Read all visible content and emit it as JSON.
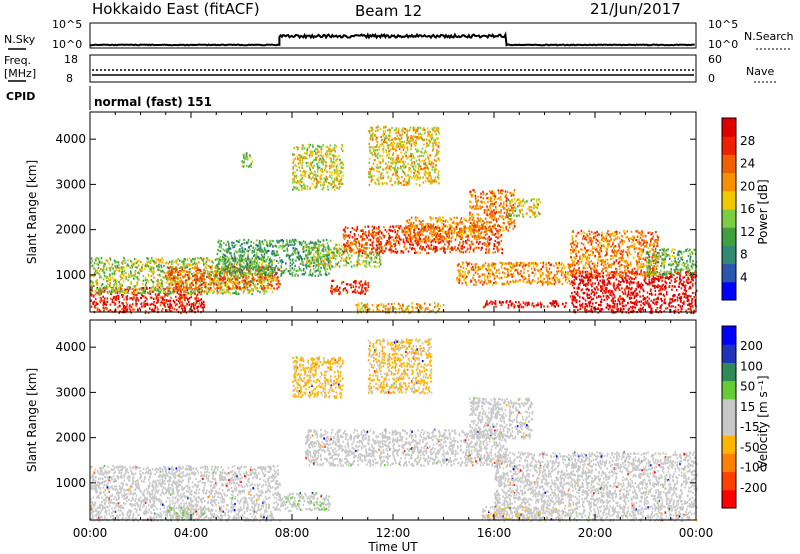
{
  "header": {
    "title": "Hokkaido East (fitACF)",
    "beam": "Beam 12",
    "date": "21/Jun/2017"
  },
  "strip": {
    "nsky_label": "N.Sky",
    "nsky_ticks": [
      "10^5",
      "10^0"
    ],
    "nsearch_label": "N.Search",
    "nsearch_ticks": [
      "10^5",
      "10^0"
    ],
    "freq_label_1": "Freq.",
    "freq_label_2": "[MHz]",
    "freq_ticks": [
      "18",
      "8"
    ],
    "nave_ticks": [
      "60",
      "0"
    ],
    "nave_label": "Nave",
    "cpid_label": "CPID",
    "cpid_value": "normal (fast) 151"
  },
  "chart_data": [
    {
      "type": "heatmap",
      "name": "power",
      "ylabel": "Slant Range [km]",
      "ylim": [
        180,
        4600
      ],
      "yticks": [
        1000,
        2000,
        3000,
        4000
      ],
      "xlabel": "Time UT",
      "xlim_hours": [
        0,
        24
      ],
      "xtick_labels": [
        "00:00",
        "04:00",
        "08:00",
        "12:00",
        "16:00",
        "20:00",
        "00:00"
      ],
      "colorbar": {
        "label": "Power [dB]",
        "ticks": [
          "28",
          "24",
          "20",
          "16",
          "12",
          "8",
          "4"
        ],
        "range": [
          0,
          30
        ],
        "colors": [
          "#0000ff",
          "#2a55b0",
          "#2f8a70",
          "#40a040",
          "#7ccd40",
          "#f2c800",
          "#f59000",
          "#f06000",
          "#ee2000",
          "#e00000"
        ]
      },
      "regions": [
        {
          "t0": 0.0,
          "t1": 4.5,
          "r0": 180,
          "r1": 750,
          "v": 27
        },
        {
          "t0": 0.0,
          "t1": 7.2,
          "r0": 600,
          "r1": 1400,
          "v": 14
        },
        {
          "t0": 3.0,
          "t1": 7.5,
          "r0": 700,
          "r1": 1200,
          "v": 22
        },
        {
          "t0": 5.0,
          "t1": 9.5,
          "r0": 1000,
          "r1": 1800,
          "v": 10
        },
        {
          "t0": 8.5,
          "t1": 11.5,
          "r0": 1200,
          "r1": 1700,
          "v": 14
        },
        {
          "t0": 10.0,
          "t1": 16.3,
          "r0": 1500,
          "r1": 2100,
          "v": 24
        },
        {
          "t0": 12.5,
          "t1": 15.5,
          "r0": 1800,
          "r1": 2300,
          "v": 20
        },
        {
          "t0": 15.0,
          "t1": 16.8,
          "r0": 2000,
          "r1": 2900,
          "v": 21
        },
        {
          "t0": 16.5,
          "t1": 17.8,
          "r0": 2300,
          "r1": 2700,
          "v": 15
        },
        {
          "t0": 14.5,
          "t1": 19.0,
          "r0": 800,
          "r1": 1300,
          "v": 20
        },
        {
          "t0": 15.5,
          "t1": 19.0,
          "r0": 300,
          "r1": 450,
          "v": 28
        },
        {
          "t0": 19.0,
          "t1": 24.0,
          "r0": 180,
          "r1": 1100,
          "v": 29
        },
        {
          "t0": 19.0,
          "t1": 22.5,
          "r0": 1000,
          "r1": 2000,
          "v": 21
        },
        {
          "t0": 22.0,
          "t1": 24.0,
          "r0": 1000,
          "r1": 1600,
          "v": 12
        },
        {
          "t0": 8.0,
          "t1": 10.0,
          "r0": 2900,
          "r1": 3900,
          "v": 16
        },
        {
          "t0": 11.0,
          "t1": 13.8,
          "r0": 3000,
          "r1": 4300,
          "v": 17
        },
        {
          "t0": 9.5,
          "t1": 11.0,
          "r0": 600,
          "r1": 900,
          "v": 26
        },
        {
          "t0": 10.5,
          "t1": 14.0,
          "r0": 180,
          "r1": 400,
          "v": 18
        },
        {
          "t0": 6.0,
          "t1": 6.4,
          "r0": 3400,
          "r1": 3750,
          "v": 12
        }
      ]
    },
    {
      "type": "heatmap",
      "name": "velocity",
      "ylabel": "Slant Range [km]",
      "ylim": [
        180,
        4600
      ],
      "yticks": [
        1000,
        2000,
        3000,
        4000
      ],
      "xlabel": "Time UT",
      "xlim_hours": [
        0,
        24
      ],
      "xtick_labels": [
        "00:00",
        "04:00",
        "08:00",
        "12:00",
        "16:00",
        "20:00",
        "00:00"
      ],
      "colorbar": {
        "label": "Velocity [m s⁻¹]",
        "ticks": [
          "200",
          "100",
          "50",
          "15",
          "-15",
          "-50",
          "-100",
          "-200"
        ],
        "range": [
          -250,
          250
        ],
        "colors": [
          "#ff0000",
          "#ff4000",
          "#ff8000",
          "#ffb400",
          "#c8c8c8",
          "#c8c8c8",
          "#66cc33",
          "#2e8b57",
          "#2233bb",
          "#0000ff"
        ]
      },
      "regions": [
        {
          "t0": 0.0,
          "t1": 7.5,
          "r0": 180,
          "r1": 1400,
          "v": 0
        },
        {
          "t0": 8.5,
          "t1": 16.5,
          "r0": 1400,
          "r1": 2200,
          "v": 0
        },
        {
          "t0": 15.0,
          "t1": 17.5,
          "r0": 2000,
          "r1": 2900,
          "v": 0
        },
        {
          "t0": 16.0,
          "t1": 24.0,
          "r0": 180,
          "r1": 1700,
          "v": 0
        },
        {
          "t0": 3.0,
          "t1": 4.5,
          "r0": 200,
          "r1": 500,
          "v": 40
        },
        {
          "t0": 8.0,
          "t1": 10.0,
          "r0": 2900,
          "r1": 3800,
          "v": -70
        },
        {
          "t0": 11.0,
          "t1": 13.5,
          "r0": 3000,
          "r1": 4200,
          "v": -60
        },
        {
          "t0": 15.5,
          "t1": 18.5,
          "r0": 200,
          "r1": 500,
          "v": -30
        },
        {
          "t0": 7.5,
          "t1": 9.5,
          "r0": 400,
          "r1": 800,
          "v": 30
        }
      ]
    }
  ],
  "xaxis": {
    "labels": [
      "00:00",
      "04:00",
      "08:00",
      "12:00",
      "16:00",
      "20:00",
      "00:00"
    ],
    "title": "Time UT"
  },
  "nsky_line": {
    "description_values_hours": [
      0,
      24
    ],
    "segments": [
      {
        "t0": 0,
        "t1": 7.5,
        "level": 0.05
      },
      {
        "t0": 7.5,
        "t1": 16.5,
        "level": 0.45
      },
      {
        "t0": 16.5,
        "t1": 24,
        "level": 0.05
      }
    ]
  }
}
